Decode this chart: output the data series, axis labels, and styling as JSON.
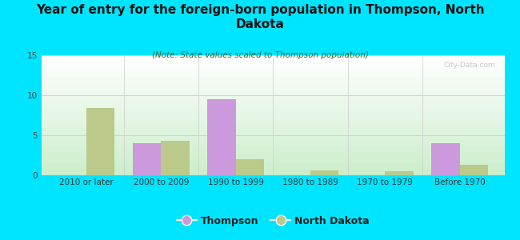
{
  "title": "Year of entry for the foreign-born population in Thompson, North\nDakota",
  "subtitle": "(Note: State values scaled to Thompson population)",
  "categories": [
    "2010 or later",
    "2000 to 2009",
    "1990 to 1999",
    "1980 to 1989",
    "1970 to 1979",
    "Before 1970"
  ],
  "thompson_values": [
    0,
    4.0,
    9.5,
    0,
    0,
    4.0
  ],
  "nd_values": [
    8.4,
    4.3,
    2.0,
    0.6,
    0.55,
    1.3
  ],
  "thompson_color": "#cc99dd",
  "nd_color": "#bbc98a",
  "background_outer": "#00e5ff",
  "background_inner": "#e8f8e8",
  "ylim": [
    0,
    15
  ],
  "yticks": [
    0,
    5,
    10,
    15
  ],
  "bar_width": 0.38,
  "legend_labels": [
    "Thompson",
    "North Dakota"
  ],
  "watermark": "City-Data.com",
  "title_fontsize": 11,
  "subtitle_fontsize": 7.5,
  "tick_fontsize": 7.5
}
